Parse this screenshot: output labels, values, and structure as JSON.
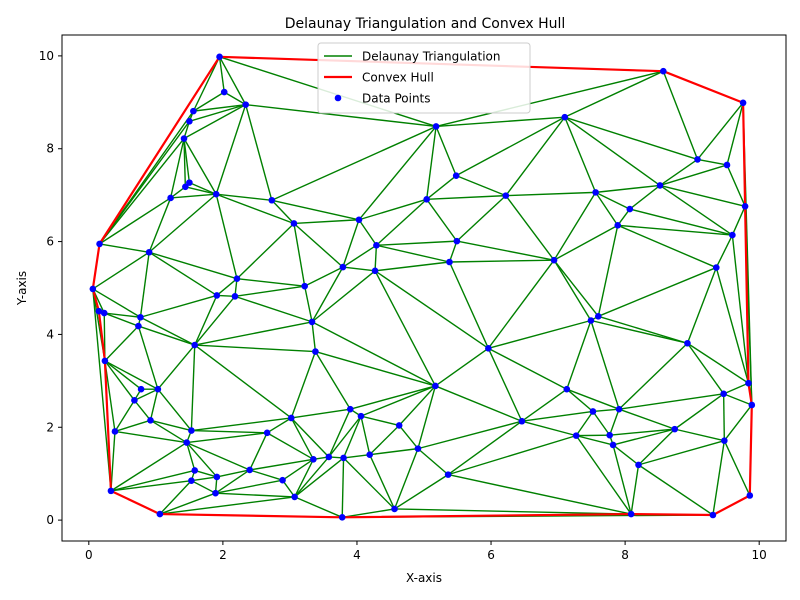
{
  "chart_data": {
    "type": "scatter",
    "title": "Delaunay Triangulation and Convex Hull",
    "xlabel": "X-axis",
    "ylabel": "Y-axis",
    "xlim": [
      -0.4,
      10.4
    ],
    "ylim": [
      -0.45,
      10.45
    ],
    "xticks": [
      0,
      2,
      4,
      6,
      8,
      10
    ],
    "yticks": [
      0,
      2,
      4,
      6,
      8,
      10
    ],
    "grid": false,
    "legend_position": "top-center",
    "legend": [
      {
        "label": "Delaunay Triangulation",
        "kind": "line",
        "color": "#008000"
      },
      {
        "label": "Convex Hull",
        "kind": "line",
        "color": "#ff0000"
      },
      {
        "label": "Data Points",
        "kind": "marker",
        "color": "#0000ff"
      }
    ],
    "points": [
      [
        0.06,
        4.98
      ],
      [
        0.15,
        4.5
      ],
      [
        0.16,
        5.95
      ],
      [
        0.23,
        4.46
      ],
      [
        0.24,
        3.43
      ],
      [
        0.33,
        0.63
      ],
      [
        0.39,
        1.91
      ],
      [
        0.68,
        2.58
      ],
      [
        0.74,
        4.18
      ],
      [
        0.77,
        4.37
      ],
      [
        0.78,
        2.82
      ],
      [
        0.92,
        2.15
      ],
      [
        0.9,
        5.77
      ],
      [
        1.03,
        2.82
      ],
      [
        1.06,
        0.13
      ],
      [
        1.22,
        6.94
      ],
      [
        1.42,
        8.22
      ],
      [
        1.44,
        7.18
      ],
      [
        1.46,
        1.67
      ],
      [
        1.5,
        8.59
      ],
      [
        1.5,
        7.27
      ],
      [
        1.53,
        0.85
      ],
      [
        1.53,
        1.93
      ],
      [
        1.56,
        8.81
      ],
      [
        1.58,
        1.07
      ],
      [
        1.58,
        3.77
      ],
      [
        1.89,
        0.58
      ],
      [
        1.9,
        7.02
      ],
      [
        1.91,
        0.93
      ],
      [
        1.91,
        4.84
      ],
      [
        1.95,
        9.98
      ],
      [
        2.02,
        9.22
      ],
      [
        2.18,
        4.82
      ],
      [
        2.21,
        5.2
      ],
      [
        2.34,
        8.95
      ],
      [
        2.4,
        1.08
      ],
      [
        2.66,
        1.88
      ],
      [
        2.73,
        6.89
      ],
      [
        2.89,
        0.86
      ],
      [
        3.02,
        2.2
      ],
      [
        3.06,
        6.39
      ],
      [
        3.07,
        0.5
      ],
      [
        3.22,
        5.04
      ],
      [
        3.33,
        4.27
      ],
      [
        3.35,
        1.31
      ],
      [
        3.38,
        3.63
      ],
      [
        3.58,
        1.36
      ],
      [
        3.78,
        0.06
      ],
      [
        3.79,
        5.45
      ],
      [
        3.8,
        1.34
      ],
      [
        3.9,
        2.39
      ],
      [
        4.06,
        2.24
      ],
      [
        4.03,
        6.47
      ],
      [
        4.19,
        1.41
      ],
      [
        4.27,
        5.37
      ],
      [
        4.29,
        5.92
      ],
      [
        4.56,
        0.24
      ],
      [
        4.63,
        2.04
      ],
      [
        4.91,
        1.54
      ],
      [
        5.04,
        6.91
      ],
      [
        5.17,
        2.89
      ],
      [
        5.18,
        8.48
      ],
      [
        5.36,
        0.98
      ],
      [
        5.38,
        5.56
      ],
      [
        5.48,
        7.42
      ],
      [
        5.49,
        6.01
      ],
      [
        5.96,
        3.7
      ],
      [
        6.22,
        6.99
      ],
      [
        6.46,
        2.13
      ],
      [
        6.94,
        5.6
      ],
      [
        7.1,
        8.68
      ],
      [
        7.13,
        2.82
      ],
      [
        7.27,
        1.82
      ],
      [
        7.49,
        4.3
      ],
      [
        7.52,
        2.34
      ],
      [
        7.56,
        7.06
      ],
      [
        7.6,
        4.39
      ],
      [
        7.77,
        1.83
      ],
      [
        7.82,
        1.62
      ],
      [
        7.89,
        6.35
      ],
      [
        7.91,
        2.39
      ],
      [
        8.07,
        6.7
      ],
      [
        8.09,
        0.13
      ],
      [
        8.2,
        1.19
      ],
      [
        8.52,
        7.21
      ],
      [
        8.57,
        9.67
      ],
      [
        8.74,
        1.96
      ],
      [
        8.93,
        3.81
      ],
      [
        9.08,
        7.77
      ],
      [
        9.31,
        0.11
      ],
      [
        9.36,
        5.44
      ],
      [
        9.47,
        2.72
      ],
      [
        9.48,
        1.71
      ],
      [
        9.52,
        7.65
      ],
      [
        9.6,
        6.14
      ],
      [
        9.76,
        8.99
      ],
      [
        9.79,
        6.76
      ],
      [
        9.84,
        2.95
      ],
      [
        9.86,
        0.53
      ],
      [
        9.89,
        2.48
      ]
    ],
    "hull": [
      [
        1.95,
        9.98
      ],
      [
        8.57,
        9.67
      ],
      [
        9.76,
        8.99
      ],
      [
        9.79,
        6.76
      ],
      [
        9.84,
        2.95
      ],
      [
        9.89,
        2.48
      ],
      [
        9.86,
        0.53
      ],
      [
        9.31,
        0.11
      ],
      [
        8.09,
        0.13
      ],
      [
        3.78,
        0.06
      ],
      [
        1.06,
        0.13
      ],
      [
        0.33,
        0.63
      ],
      [
        0.24,
        3.43
      ],
      [
        0.15,
        4.5
      ],
      [
        0.06,
        4.98
      ],
      [
        0.16,
        5.95
      ],
      [
        1.95,
        9.98
      ]
    ]
  }
}
